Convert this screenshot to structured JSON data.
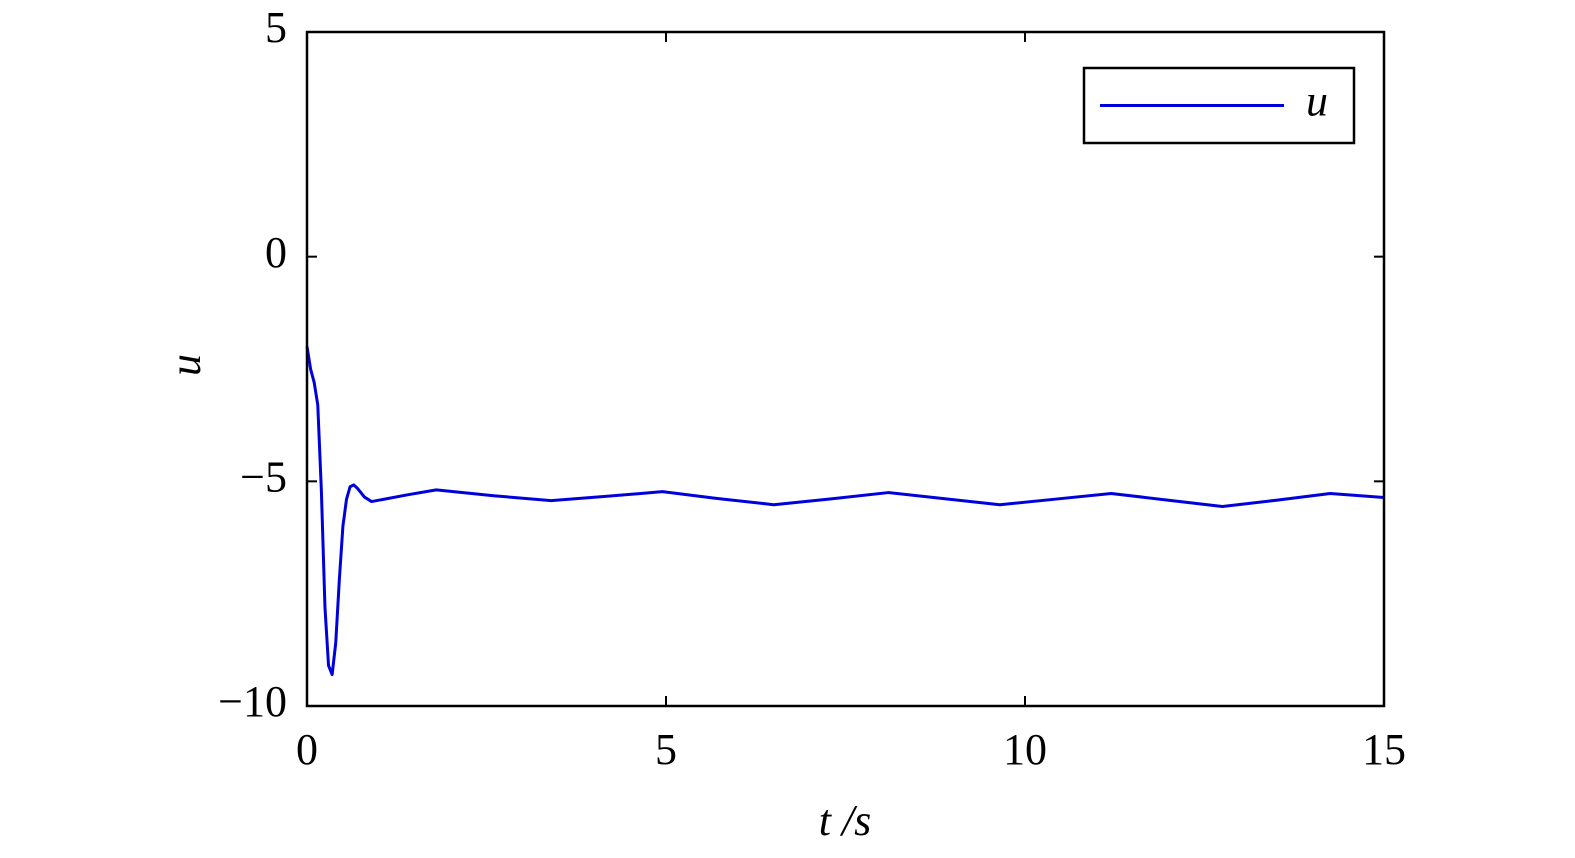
{
  "chart_data": {
    "type": "line",
    "xlabel": "t /s",
    "ylabel": "u",
    "x": [
      0,
      0.05,
      0.1,
      0.15,
      0.2,
      0.25,
      0.3,
      0.35,
      0.4,
      0.45,
      0.5,
      0.55,
      0.6,
      0.65,
      0.7,
      0.8,
      0.9,
      1.0,
      1.4,
      1.8,
      2.6,
      3.4,
      4.2,
      4.95,
      5.7,
      6.5,
      7.3,
      8.1,
      8.9,
      9.65,
      10.4,
      11.2,
      12.0,
      12.75,
      13.5,
      14.25,
      15
    ],
    "series": [
      {
        "name": "u",
        "color": "#0000dd",
        "values": [
          -2.0,
          -2.5,
          -2.8,
          -3.3,
          -5.2,
          -7.8,
          -9.1,
          -9.3,
          -8.6,
          -7.2,
          -6.0,
          -5.4,
          -5.12,
          -5.08,
          -5.15,
          -5.35,
          -5.45,
          -5.42,
          -5.3,
          -5.19,
          -5.32,
          -5.43,
          -5.33,
          -5.23,
          -5.38,
          -5.52,
          -5.39,
          -5.25,
          -5.39,
          -5.52,
          -5.4,
          -5.27,
          -5.42,
          -5.56,
          -5.42,
          -5.27,
          -5.36
        ]
      }
    ],
    "xlim": [
      0,
      15
    ],
    "xticks": [
      0,
      5,
      10,
      15
    ],
    "ylim": [
      -10,
      5
    ],
    "yticks": [
      {
        "value": -10,
        "label": "−10"
      },
      {
        "value": -5,
        "label": "−5"
      },
      0,
      5
    ],
    "legend": "upper right",
    "grid": false
  }
}
